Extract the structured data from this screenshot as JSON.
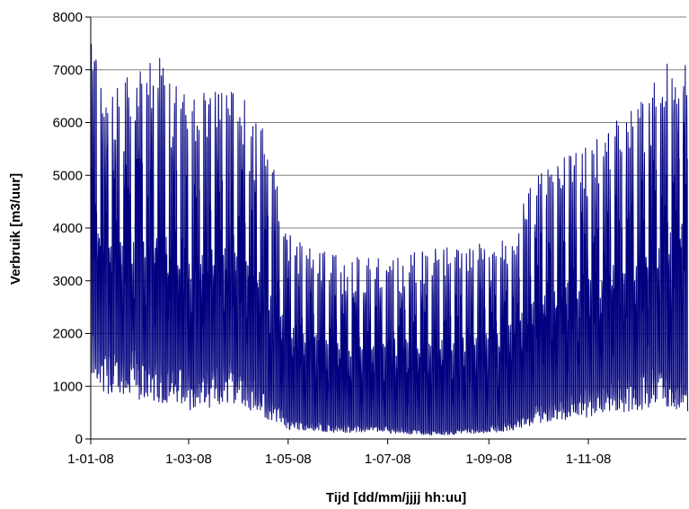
{
  "chart_data": {
    "type": "line",
    "title": "",
    "xlabel": "Tijd [dd/mm/jjjj hh:uu]",
    "ylabel": "Verbruik [m3/uur]",
    "ylim": [
      0,
      8000
    ],
    "yticks": [
      0,
      1000,
      2000,
      3000,
      4000,
      5000,
      6000,
      7000,
      8000
    ],
    "ytick_labels": [
      "0",
      "1000",
      "2000",
      "3000",
      "4000",
      "5000",
      "6000",
      "7000",
      "8000"
    ],
    "xlim": [
      "2008-01-01",
      "2008-12-31"
    ],
    "xticks": [
      "2008-01-01",
      "2008-03-01",
      "2008-05-01",
      "2008-07-01",
      "2008-09-01",
      "2008-11-01"
    ],
    "xtick_labels": [
      "1-01-08",
      "1-03-08",
      "1-05-08",
      "1-07-08",
      "1-09-08",
      "1-11-08"
    ],
    "grid": {
      "horizontal": true,
      "vertical": false
    },
    "legend": "none",
    "series_color": "#000080",
    "series": [
      {
        "name": "",
        "x": [
          "2008-01-01",
          "2008-01-15",
          "2008-02-01",
          "2008-02-15",
          "2008-03-01",
          "2008-03-15",
          "2008-04-01",
          "2008-04-15",
          "2008-05-01",
          "2008-05-15",
          "2008-06-01",
          "2008-06-15",
          "2008-07-01",
          "2008-07-15",
          "2008-08-01",
          "2008-08-15",
          "2008-09-01",
          "2008-09-15",
          "2008-10-01",
          "2008-10-15",
          "2008-11-01",
          "2008-11-15",
          "2008-12-01",
          "2008-12-15",
          "2008-12-31"
        ],
        "daily_peak": [
          7000,
          6300,
          6600,
          6800,
          6000,
          6200,
          6300,
          5600,
          3700,
          3400,
          3300,
          3200,
          3200,
          3300,
          3400,
          3400,
          3500,
          3700,
          4800,
          5000,
          5200,
          5600,
          6000,
          6500,
          7200
        ],
        "daily_min": [
          1700,
          1300,
          1200,
          1100,
          900,
          1000,
          1100,
          700,
          300,
          250,
          200,
          200,
          180,
          150,
          120,
          150,
          200,
          250,
          500,
          600,
          700,
          800,
          900,
          1100,
          800
        ]
      }
    ]
  }
}
